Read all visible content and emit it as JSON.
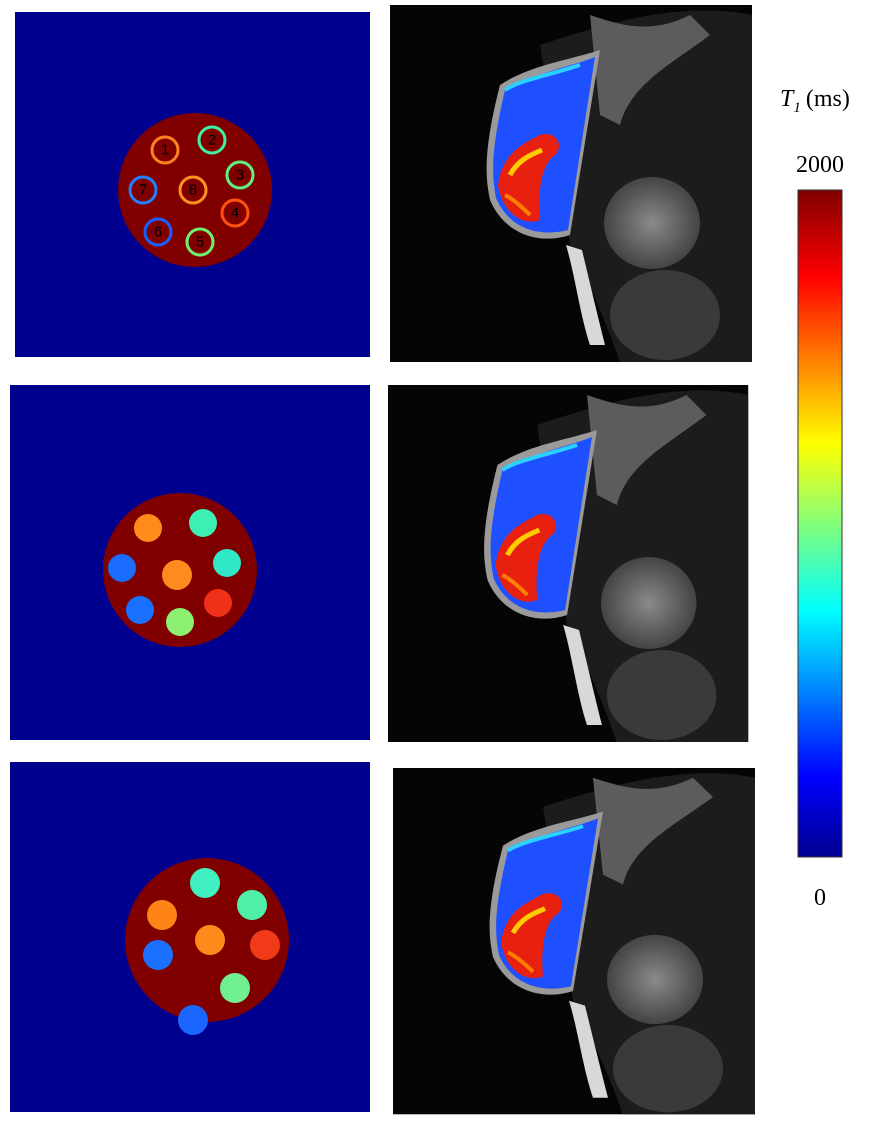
{
  "colorbar": {
    "label_symbol": "T",
    "label_subscript": "1",
    "label_unit": "(ms)",
    "ticks": [
      0,
      2000
    ]
  },
  "phantom_labels": [
    "1",
    "2",
    "3",
    "4",
    "5",
    "6",
    "7",
    "8"
  ]
}
